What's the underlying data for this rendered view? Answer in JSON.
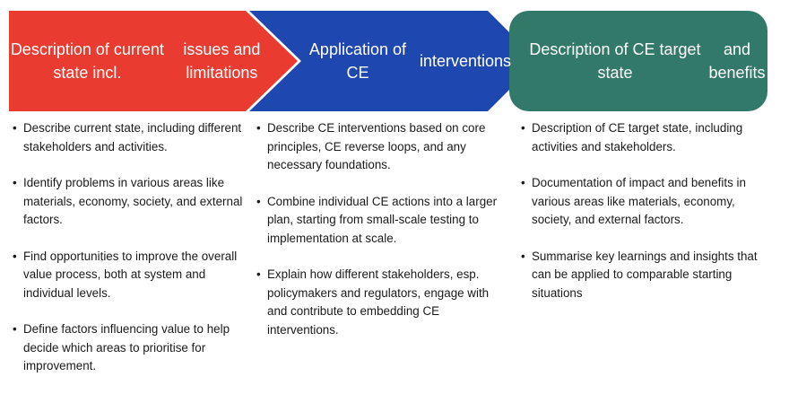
{
  "stages": [
    {
      "title_line1": "Description of current state incl.",
      "title_line2": "issues and limitations",
      "color": "#e93b2f",
      "bullets": [
        "Describe current state, including different stakeholders and activities.",
        "Identify problems in various areas like materials, economy, society, and external factors.",
        "Find opportunities to improve the overall value process, both at system and individual levels.",
        "Define factors influencing value to help decide which areas to prioritise for improvement."
      ]
    },
    {
      "title_line1": "Application of CE",
      "title_line2": "interventions",
      "color": "#1f47b0",
      "bullets": [
        "Describe CE interventions based on core principles, CE reverse loops, and any necessary foundations.",
        "Combine individual CE actions into a larger plan, starting from small-scale testing to implementation at scale.",
        "Explain how different stakeholders, esp. policymakers and regulators, engage with and contribute to embedding CE interventions."
      ]
    },
    {
      "title_line1": "Description of CE target state",
      "title_line2": "and benefits",
      "color": "#33796a",
      "bullets": [
        "Description of CE target state, including activities and stakeholders.",
        "Documentation of impact and benefits in various areas like materials, economy, society, and external factors.",
        "Summarise key learnings and insights that can be applied to comparable starting situations"
      ]
    }
  ]
}
